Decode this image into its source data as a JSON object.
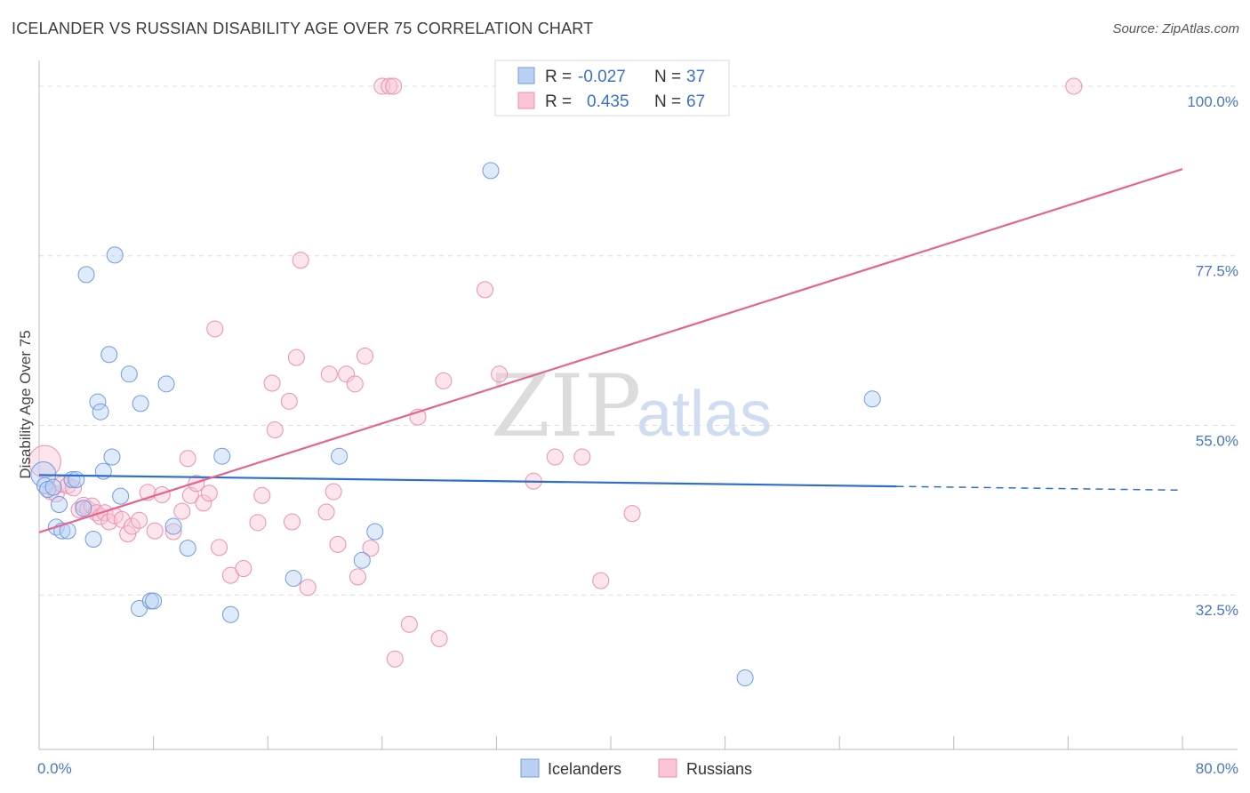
{
  "title": "ICELANDER VS RUSSIAN DISABILITY AGE OVER 75 CORRELATION CHART",
  "source": "Source: ZipAtlas.com",
  "watermark": {
    "zip": "ZIP",
    "atlas": "atlas"
  },
  "colors": {
    "icelanders": "#6f9be0",
    "russians": "#ee8fb0",
    "icel_line": "#2e6fcc",
    "rus_line": "#e6648e"
  },
  "legend": {
    "r_label": "R =",
    "n_label": "N =",
    "icelanders": {
      "r": "-0.027",
      "n": "37"
    },
    "russians": {
      "r": "0.435",
      "n": "67"
    }
  },
  "bottom_legend": {
    "icelanders": "Icelanders",
    "russians": "Russians"
  },
  "chart_data": {
    "type": "scatter",
    "title": "ICELANDER VS RUSSIAN DISABILITY AGE OVER 75 CORRELATION CHART",
    "xlabel": "",
    "ylabel": "Disability Age Over 75",
    "xlim": [
      0,
      80
    ],
    "ylim": [
      12,
      102
    ],
    "x_tick_labels": [
      "0.0%",
      "80.0%"
    ],
    "y_ticks": [
      32.5,
      55.0,
      77.5,
      100.0
    ],
    "y_tick_labels": [
      "32.5%",
      "55.0%",
      "77.5%",
      "100.0%"
    ],
    "series": [
      {
        "name": "Icelanders",
        "trend": {
          "x": [
            0,
            60
          ],
          "y": [
            48.4,
            46.9
          ],
          "dashed_to": [
            80,
            46.4
          ]
        },
        "points": [
          [
            0.3,
            48.5,
            14
          ],
          [
            0.4,
            47.0,
            9
          ],
          [
            0.6,
            46.5,
            9
          ],
          [
            1.0,
            46.8,
            9
          ],
          [
            1.2,
            41.5,
            9
          ],
          [
            1.4,
            44.5,
            9
          ],
          [
            1.6,
            41.0,
            9
          ],
          [
            2.0,
            41.0,
            9
          ],
          [
            2.3,
            47.8,
            9
          ],
          [
            2.6,
            47.8,
            9
          ],
          [
            3.1,
            44.0,
            9
          ],
          [
            3.3,
            75.0,
            9
          ],
          [
            3.8,
            39.9,
            9
          ],
          [
            4.1,
            58.1,
            9
          ],
          [
            4.3,
            56.8,
            9
          ],
          [
            4.5,
            48.9,
            9
          ],
          [
            4.9,
            64.4,
            9
          ],
          [
            5.1,
            50.8,
            9
          ],
          [
            5.3,
            77.6,
            9
          ],
          [
            5.7,
            45.6,
            9
          ],
          [
            6.3,
            61.8,
            9
          ],
          [
            7.1,
            57.9,
            9
          ],
          [
            7.0,
            30.7,
            9
          ],
          [
            7.8,
            31.7,
            9
          ],
          [
            8.0,
            31.7,
            9
          ],
          [
            8.9,
            60.5,
            9
          ],
          [
            9.4,
            41.6,
            9
          ],
          [
            10.4,
            38.7,
            9
          ],
          [
            12.8,
            50.9,
            9
          ],
          [
            13.4,
            29.9,
            9
          ],
          [
            17.8,
            34.7,
            9
          ],
          [
            21.0,
            50.9,
            9
          ],
          [
            22.6,
            37.1,
            9
          ],
          [
            23.5,
            40.9,
            9
          ],
          [
            31.6,
            88.8,
            9
          ],
          [
            49.4,
            21.5,
            9
          ],
          [
            58.3,
            58.5,
            9
          ]
        ]
      },
      {
        "name": "Russians",
        "trend": {
          "x": [
            0,
            80
          ],
          "y": [
            40.8,
            89.0
          ]
        },
        "points": [
          [
            0.4,
            50.2,
            18
          ],
          [
            0.8,
            46.2,
            9
          ],
          [
            1.2,
            45.9,
            9
          ],
          [
            1.6,
            47.2,
            9
          ],
          [
            2.0,
            47.0,
            9
          ],
          [
            2.4,
            46.7,
            9
          ],
          [
            2.8,
            43.8,
            9
          ],
          [
            3.1,
            44.4,
            9
          ],
          [
            3.4,
            43.9,
            9
          ],
          [
            3.7,
            44.3,
            9
          ],
          [
            4.0,
            43.4,
            9
          ],
          [
            4.3,
            42.9,
            9
          ],
          [
            4.6,
            43.4,
            9
          ],
          [
            4.9,
            42.2,
            9
          ],
          [
            5.3,
            43.0,
            9
          ],
          [
            5.8,
            42.5,
            9
          ],
          [
            6.2,
            40.6,
            9
          ],
          [
            6.5,
            41.6,
            9
          ],
          [
            7.0,
            42.4,
            9
          ],
          [
            7.6,
            46.1,
            9
          ],
          [
            8.1,
            41.0,
            9
          ],
          [
            8.6,
            45.8,
            9
          ],
          [
            9.4,
            40.9,
            9
          ],
          [
            10.0,
            43.6,
            9
          ],
          [
            10.4,
            50.6,
            9
          ],
          [
            10.6,
            45.7,
            9
          ],
          [
            11.0,
            47.3,
            9
          ],
          [
            11.5,
            44.7,
            9
          ],
          [
            11.9,
            46.0,
            9
          ],
          [
            12.3,
            67.8,
            9
          ],
          [
            12.6,
            38.8,
            9
          ],
          [
            13.4,
            35.1,
            9
          ],
          [
            14.3,
            36.0,
            9
          ],
          [
            15.3,
            42.1,
            9
          ],
          [
            15.6,
            45.7,
            9
          ],
          [
            16.3,
            60.6,
            9
          ],
          [
            16.5,
            54.4,
            9
          ],
          [
            17.5,
            58.2,
            9
          ],
          [
            17.7,
            42.2,
            9
          ],
          [
            18.0,
            64.0,
            9
          ],
          [
            18.3,
            76.9,
            9
          ],
          [
            18.8,
            33.5,
            9
          ],
          [
            20.1,
            43.5,
            9
          ],
          [
            20.3,
            61.8,
            9
          ],
          [
            20.6,
            46.2,
            9
          ],
          [
            20.9,
            39.2,
            9
          ],
          [
            21.5,
            61.8,
            9
          ],
          [
            22.1,
            60.5,
            9
          ],
          [
            22.3,
            34.9,
            9
          ],
          [
            22.8,
            64.2,
            9
          ],
          [
            23.2,
            38.7,
            9
          ],
          [
            24.0,
            100.0,
            9
          ],
          [
            24.5,
            100.0,
            9
          ],
          [
            24.8,
            100.0,
            9
          ],
          [
            24.9,
            24.0,
            9
          ],
          [
            25.9,
            28.6,
            9
          ],
          [
            26.5,
            56.1,
            9
          ],
          [
            28.0,
            26.7,
            9
          ],
          [
            28.3,
            60.9,
            9
          ],
          [
            31.2,
            73.0,
            9
          ],
          [
            32.2,
            61.8,
            9
          ],
          [
            34.6,
            47.6,
            9
          ],
          [
            36.1,
            50.8,
            9
          ],
          [
            38.0,
            50.8,
            9
          ],
          [
            39.3,
            34.4,
            9
          ],
          [
            41.5,
            43.3,
            9
          ],
          [
            72.4,
            100.0,
            9
          ]
        ]
      }
    ]
  }
}
